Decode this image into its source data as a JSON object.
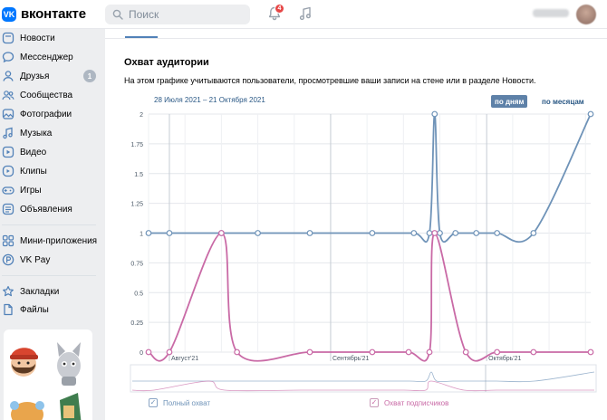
{
  "header": {
    "logo_text": "вконтакте",
    "logo_mark": "VK",
    "search_placeholder": "Поиск",
    "notifications_count": "4"
  },
  "sidebar": {
    "items": [
      {
        "label": "Новости",
        "icon": "newspaper-icon"
      },
      {
        "label": "Мессенджер",
        "icon": "chat-bubble-icon"
      },
      {
        "label": "Друзья",
        "icon": "user-icon",
        "count": "1"
      },
      {
        "label": "Сообщества",
        "icon": "users-icon"
      },
      {
        "label": "Фотографии",
        "icon": "photo-icon"
      },
      {
        "label": "Музыка",
        "icon": "music-note-icon"
      },
      {
        "label": "Видео",
        "icon": "video-icon"
      },
      {
        "label": "Клипы",
        "icon": "clips-icon"
      },
      {
        "label": "Игры",
        "icon": "gamepad-icon"
      },
      {
        "label": "Объявления",
        "icon": "ads-icon"
      },
      {
        "label": "Мини-приложения",
        "icon": "apps-icon"
      },
      {
        "label": "VK Pay",
        "icon": "vkpay-icon"
      },
      {
        "label": "Закладки",
        "icon": "star-icon"
      },
      {
        "label": "Файлы",
        "icon": "file-icon"
      }
    ]
  },
  "main": {
    "section_title": "Охват аудитории",
    "description": "На этом графике учитываются пользователи, просмотревшие ваши записи на стене или в разделе Новости.",
    "date_range": "28 Июля 2021 – 21 Октября 2021",
    "period_buttons": {
      "days": "по дням",
      "months": "по месяцам"
    },
    "legend": {
      "total": "Полный охват",
      "subscribers": "Охват подписчиков"
    }
  },
  "colors": {
    "brand": "#0077ff",
    "total_series": "#6f93b8",
    "subscriber_series": "#c96aa6",
    "link": "#2a5885",
    "active_button": "#5e81a8"
  },
  "chart_data": {
    "type": "line",
    "title": "",
    "xlabel": "",
    "ylabel": "",
    "ylim": [
      0,
      2
    ],
    "y_ticks": [
      "0",
      "0.25",
      "0.5",
      "0.75",
      "1",
      "1.25",
      "1.5",
      "1.75",
      "2"
    ],
    "x_tick_labels": [
      "Август'21",
      "Сентябрь'21",
      "Октябрь'21"
    ],
    "x_ticks_dates": [
      "2021-08-01",
      "2021-09-01",
      "2021-10-01"
    ],
    "x_range": [
      "2021-07-28",
      "2021-10-21"
    ],
    "grid": true,
    "legend_position": "bottom-left",
    "series": [
      {
        "name": "Полный охват",
        "color": "#6f93b8",
        "points": [
          {
            "x": "2021-07-28",
            "y": 1
          },
          {
            "x": "2021-08-01",
            "y": 1
          },
          {
            "x": "2021-08-11",
            "y": 1
          },
          {
            "x": "2021-08-18",
            "y": 1
          },
          {
            "x": "2021-08-28",
            "y": 1
          },
          {
            "x": "2021-09-09",
            "y": 1
          },
          {
            "x": "2021-09-17",
            "y": 1
          },
          {
            "x": "2021-09-20",
            "y": 1
          },
          {
            "x": "2021-09-21",
            "y": 2
          },
          {
            "x": "2021-09-22",
            "y": 1
          },
          {
            "x": "2021-09-25",
            "y": 1
          },
          {
            "x": "2021-09-29",
            "y": 1
          },
          {
            "x": "2021-10-03",
            "y": 1
          },
          {
            "x": "2021-10-10",
            "y": 1
          },
          {
            "x": "2021-10-21",
            "y": 2
          }
        ]
      },
      {
        "name": "Охват подписчиков",
        "color": "#c96aa6",
        "points": [
          {
            "x": "2021-07-28",
            "y": 0
          },
          {
            "x": "2021-08-01",
            "y": 0
          },
          {
            "x": "2021-08-11",
            "y": 1
          },
          {
            "x": "2021-08-14",
            "y": 0
          },
          {
            "x": "2021-08-28",
            "y": 0
          },
          {
            "x": "2021-09-09",
            "y": 0
          },
          {
            "x": "2021-09-16",
            "y": 0
          },
          {
            "x": "2021-09-20",
            "y": 0
          },
          {
            "x": "2021-09-21",
            "y": 1
          },
          {
            "x": "2021-09-27",
            "y": 0
          },
          {
            "x": "2021-10-03",
            "y": 0
          },
          {
            "x": "2021-10-10",
            "y": 0
          },
          {
            "x": "2021-10-21",
            "y": 0
          }
        ]
      }
    ]
  }
}
